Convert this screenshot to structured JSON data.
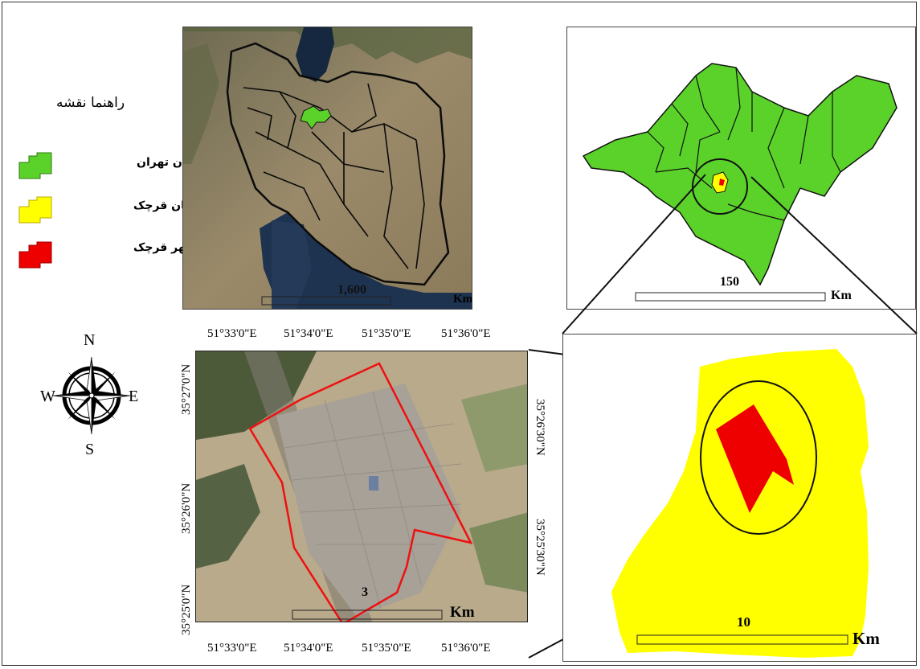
{
  "legend": {
    "title": "راهنما نقشه",
    "items": [
      {
        "label": "استان تهران",
        "color": "#5bd22a"
      },
      {
        "label": "شهرستان قرچک",
        "color": "#ffff00"
      },
      {
        "label": "شهر قرچک",
        "color": "#ee0000"
      }
    ]
  },
  "compass": {
    "n": "N",
    "s": "S",
    "e": "E",
    "w": "W",
    "icon": "compass-rose-icon"
  },
  "iran_map": {
    "scale_value": "1,600",
    "scale_unit": "Km"
  },
  "province_map": {
    "scale_value": "150",
    "scale_unit": "Km"
  },
  "city_imagery": {
    "scale_value": "3",
    "scale_unit": "Km",
    "lon_labels": [
      "51°33'0\"E",
      "51°34'0\"E",
      "51°35'0\"E",
      "51°36'0\"E"
    ],
    "lat_labels_left": [
      "35°27'0\"N",
      "35°26'0\"N",
      "35°25'0\"N"
    ],
    "lat_labels_right": [
      "35°26'30\"N",
      "35°25'30\"N"
    ]
  },
  "county_map": {
    "scale_value": "10",
    "scale_unit": "Km"
  },
  "colors": {
    "province": "#5bd22a",
    "county": "#ffff00",
    "city": "#ee0000",
    "water": "#1a2c4a",
    "land": "#8c7f63"
  }
}
